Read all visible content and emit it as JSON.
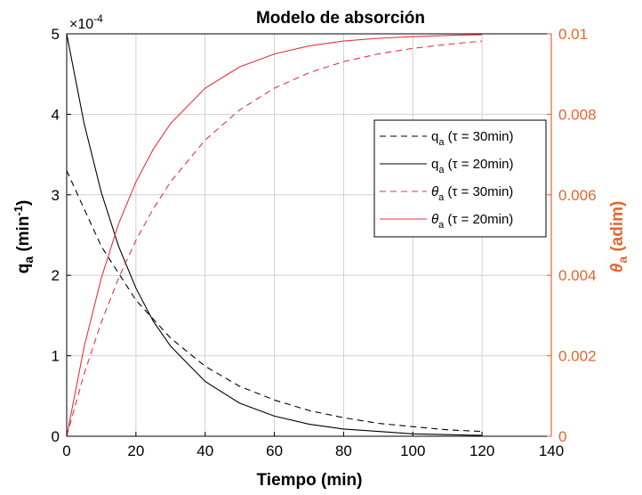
{
  "chart_data": {
    "type": "line",
    "title": "Modelo de absorción",
    "xlabel": "Tiempo (min)",
    "ylabel": {
      "base": "q",
      "sub": "a",
      "unit_pre": " (min",
      "sup": "-1",
      "unit_post": ")"
    },
    "ylabel_right": {
      "base": "θ",
      "sub": "a",
      "unit": " (adim)"
    },
    "y_exponent": {
      "base": "×10",
      "sup": "-4"
    },
    "xlim": [
      0,
      140
    ],
    "ylim_left": [
      0,
      5
    ],
    "ylim_right": [
      0,
      0.01
    ],
    "x_ticks": [
      "0",
      "20",
      "40",
      "60",
      "80",
      "100",
      "120",
      "140"
    ],
    "y_ticks_left": [
      "0",
      "1",
      "2",
      "3",
      "4",
      "5"
    ],
    "y_ticks_right": [
      "0",
      "0.002",
      "0.004",
      "0.006",
      "0.008",
      "0.01"
    ],
    "grid": true,
    "legend_position": "right-center",
    "colors": {
      "left_axis": "#000000",
      "right_axis": "#e8642c",
      "red_series": "#e8313a",
      "black_series": "#000000"
    },
    "series": [
      {
        "name": "q_a (τ = 30min)",
        "legend": {
          "base": "q",
          "sub": "a",
          "rest": " (τ = 30min)"
        },
        "axis": "left",
        "style": "dashed",
        "color": "#000000",
        "x": [
          0,
          10,
          20,
          30,
          40,
          50,
          60,
          70,
          80,
          90,
          100,
          110,
          120
        ],
        "y": [
          3.3,
          2.36,
          1.69,
          1.22,
          0.87,
          0.62,
          0.45,
          0.32,
          0.23,
          0.16,
          0.12,
          0.08,
          0.06
        ]
      },
      {
        "name": "q_a (τ = 20min)",
        "legend": {
          "base": "q",
          "sub": "a",
          "rest": " (τ = 20min)"
        },
        "axis": "left",
        "style": "solid",
        "color": "#000000",
        "x": [
          0,
          5,
          10,
          15,
          20,
          25,
          30,
          40,
          50,
          60,
          70,
          80,
          90,
          100,
          110,
          120
        ],
        "y": [
          5.0,
          3.89,
          3.03,
          2.36,
          1.84,
          1.43,
          1.12,
          0.68,
          0.41,
          0.25,
          0.15,
          0.09,
          0.06,
          0.03,
          0.02,
          0.01
        ]
      },
      {
        "name": "θ_a (τ = 30min)",
        "legend": {
          "base": "θ",
          "sub": "a",
          "rest": " (τ = 30min)"
        },
        "axis": "right",
        "style": "dashed",
        "color": "#e8313a",
        "x": [
          0,
          5,
          10,
          15,
          20,
          25,
          30,
          40,
          50,
          60,
          70,
          80,
          90,
          100,
          110,
          120
        ],
        "y": [
          0,
          0.00154,
          0.00283,
          0.00393,
          0.00487,
          0.00565,
          0.00632,
          0.00736,
          0.00811,
          0.00865,
          0.00903,
          0.00931,
          0.0095,
          0.00964,
          0.00974,
          0.00982
        ]
      },
      {
        "name": "θ_a (τ = 20min)",
        "legend": {
          "base": "θ",
          "sub": "a",
          "rest": " (τ = 20min)"
        },
        "axis": "right",
        "style": "solid",
        "color": "#e8313a",
        "x": [
          0,
          5,
          10,
          15,
          20,
          25,
          30,
          40,
          50,
          60,
          70,
          80,
          90,
          100,
          110,
          120
        ],
        "y": [
          0,
          0.00221,
          0.00393,
          0.00528,
          0.00632,
          0.00713,
          0.00777,
          0.00865,
          0.00918,
          0.0095,
          0.0097,
          0.00982,
          0.00989,
          0.00993,
          0.00996,
          0.00998
        ]
      }
    ]
  }
}
